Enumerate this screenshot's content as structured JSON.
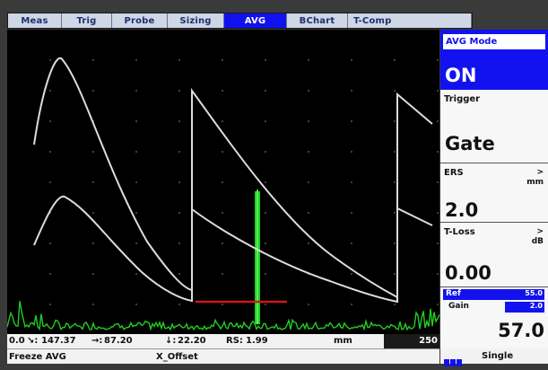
{
  "tabs": [
    {
      "label": "Meas",
      "active": false
    },
    {
      "label": "Trig",
      "active": false
    },
    {
      "label": "Probe",
      "active": false
    },
    {
      "label": "Sizing",
      "active": false
    },
    {
      "label": "AVG",
      "active": true
    },
    {
      "label": "BChart",
      "active": false
    },
    {
      "label": "T-Comp",
      "active": false
    }
  ],
  "panel": {
    "avg_mode": {
      "title": "AVG Mode",
      "value": "ON"
    },
    "trigger": {
      "title": "Trigger",
      "value": "Gate"
    },
    "ers": {
      "title": "ERS",
      "unit": "mm",
      "arrow": ">",
      "value": "2.0"
    },
    "tloss": {
      "title": "T-Loss",
      "unit": "dB",
      "arrow": ">",
      "value": "0.00"
    },
    "ref": {
      "label": "Ref",
      "value": "55.0"
    },
    "gain": {
      "label": "Gain",
      "step": "2.0",
      "value": "57.0"
    },
    "mode_label": "Single"
  },
  "readout": {
    "first": "0.0",
    "path": "147.37",
    "horizontal": "87.20",
    "depth": "22.20",
    "rs_label": "RS:",
    "rs_value": "1.99",
    "unit": "mm",
    "range_end": "250"
  },
  "status": {
    "left": "Freeze AVG",
    "center": "X_Offset"
  },
  "colors": {
    "tab_active": "#1111ee",
    "curve": "#dcdcdc",
    "signal": "#22cc22",
    "gate": "#d01818",
    "panel_blue": "#1212f0"
  }
}
